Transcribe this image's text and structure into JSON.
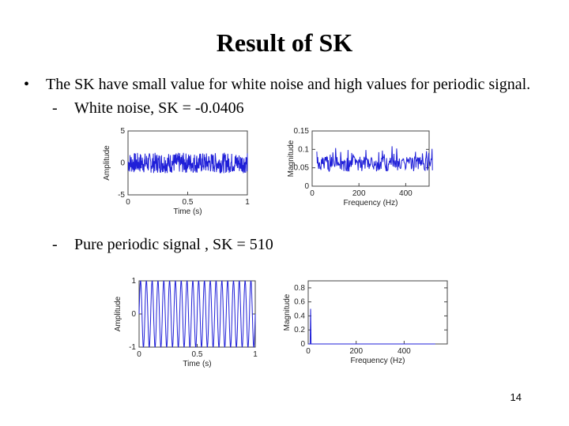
{
  "slide": {
    "title": "Result of SK",
    "bullet": "The SK have small value for white noise and high values for periodic signal.",
    "sub1": "White noise, SK =  -0.0406",
    "sub2": "Pure periodic signal , SK = 510",
    "page_number": "14",
    "bullet_symbol": "•",
    "dash_symbol": "-"
  },
  "chart_data": [
    {
      "type": "line",
      "name": "white-noise-time",
      "xlabel": "Time (s)",
      "ylabel": "Amplitude",
      "x_ticks": [
        "0",
        "0.5",
        "1"
      ],
      "y_ticks": [
        "5",
        "0",
        "-5"
      ],
      "xlim": [
        0,
        1
      ],
      "ylim": [
        -5,
        5
      ],
      "line_color": "#1f1fd8",
      "series_description_values": {
        "amplitude_range": [
          -1.5,
          1.5
        ]
      }
    },
    {
      "type": "line",
      "name": "white-noise-spectrum",
      "xlabel": "Frequency (Hz)",
      "ylabel": "Magnitude",
      "x_ticks": [
        "0",
        "200",
        "400"
      ],
      "y_ticks": [
        "0.15",
        "0.1",
        "0.05",
        "0"
      ],
      "xlim": [
        0,
        500
      ],
      "ylim": [
        0,
        0.15
      ],
      "line_color": "#1f1fd8"
    },
    {
      "type": "line",
      "name": "periodic-time",
      "xlabel": "Time (s)",
      "ylabel": "Amplitude",
      "x_ticks": [
        "0",
        "0.5",
        "1"
      ],
      "y_ticks": [
        "1",
        "0",
        "-1"
      ],
      "xlim": [
        0,
        1
      ],
      "ylim": [
        -1,
        1
      ],
      "line_color": "#1f1fd8"
    },
    {
      "type": "line",
      "name": "periodic-spectrum",
      "xlabel": "Frequency (Hz)",
      "ylabel": "Magnitude",
      "x_ticks": [
        "0",
        "200",
        "400"
      ],
      "y_ticks": [
        "0.8",
        "0.6",
        "0.4",
        "0.2",
        "0"
      ],
      "xlim": [
        0,
        580
      ],
      "ylim": [
        0,
        0.9
      ],
      "peak": {
        "x": 10,
        "y": 0.5
      },
      "line_color": "#1f1fd8"
    }
  ]
}
